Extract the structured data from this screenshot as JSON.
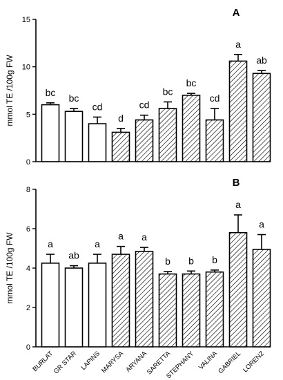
{
  "chart_data": [
    {
      "type": "bar",
      "panel_label": "A",
      "ylabel": "mmol TE /100g FW",
      "ylim": [
        0,
        15
      ],
      "yticks": [
        0,
        5,
        10,
        15
      ],
      "categories": [
        "BURLAT",
        "GR STAR",
        "LAPINS",
        "MARYSA",
        "ARYANA",
        "SARETTA",
        "STEPHANY",
        "VALINA",
        "GABRIEL",
        "LORENZ"
      ],
      "values": [
        6.0,
        5.3,
        4.0,
        3.1,
        4.4,
        5.6,
        7.0,
        4.4,
        10.6,
        9.3
      ],
      "errors": [
        0.2,
        0.3,
        0.7,
        0.4,
        0.5,
        0.7,
        0.2,
        1.2,
        0.7,
        0.3
      ],
      "fill": [
        "open",
        "open",
        "open",
        "hatched",
        "hatched",
        "hatched",
        "hatched",
        "hatched",
        "hatched",
        "hatched"
      ],
      "significance": [
        "bc",
        "bc",
        "cd",
        "d",
        "cd",
        "bc",
        "bc",
        "cd",
        "a",
        "ab"
      ]
    },
    {
      "type": "bar",
      "panel_label": "B",
      "ylabel": "mmol TE /100g FW",
      "ylim": [
        0,
        8
      ],
      "yticks": [
        0,
        2,
        4,
        6,
        8
      ],
      "categories": [
        "BURLAT",
        "GR STAR",
        "LAPINS",
        "MARYSA",
        "ARYANA",
        "SARETTA",
        "STEPHANY",
        "VALINA",
        "GABRIEL",
        "LORENZ"
      ],
      "values": [
        4.25,
        4.0,
        4.25,
        4.7,
        4.85,
        3.7,
        3.7,
        3.8,
        5.8,
        4.95
      ],
      "errors": [
        0.45,
        0.12,
        0.45,
        0.4,
        0.2,
        0.12,
        0.15,
        0.1,
        0.9,
        0.75
      ],
      "fill": [
        "open",
        "open",
        "open",
        "hatched",
        "hatched",
        "hatched",
        "hatched",
        "hatched",
        "hatched",
        "hatched"
      ],
      "significance": [
        "a",
        "ab",
        "a",
        "a",
        "a",
        "b",
        "b",
        "b",
        "a",
        "a"
      ]
    }
  ]
}
